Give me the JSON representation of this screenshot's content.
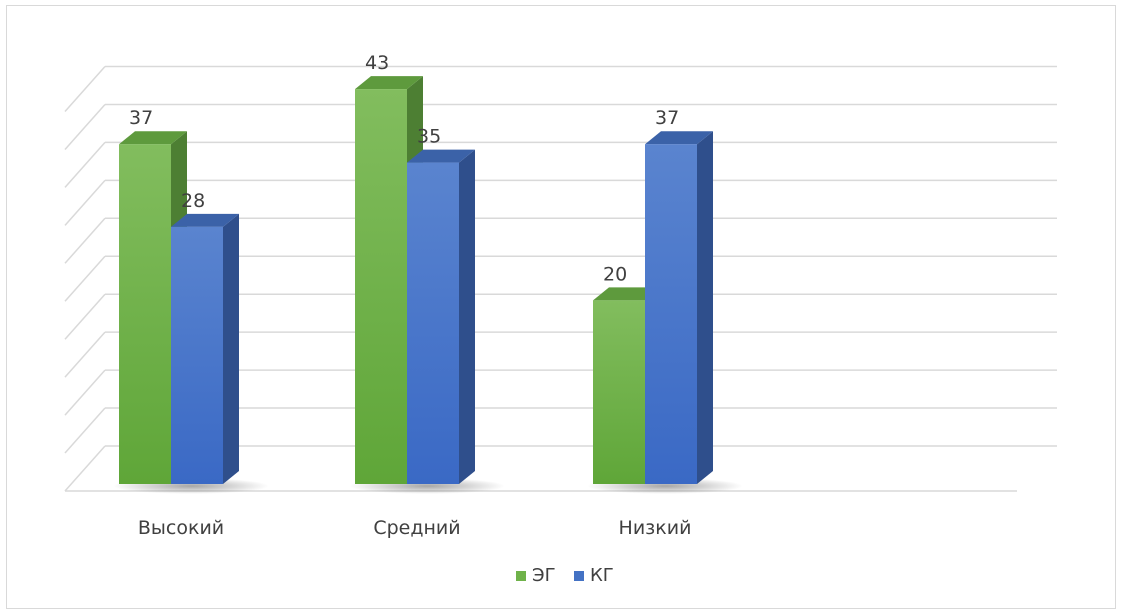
{
  "chart_data": {
    "type": "bar",
    "style": "3d-clustered-column",
    "categories": [
      "Высокий",
      "Средний",
      "Низкий"
    ],
    "series": [
      {
        "name": "ЭГ",
        "values": [
          37,
          43,
          20
        ],
        "color": "#6fb24a",
        "side_color": "#4d7f33",
        "top_color": "#5e9a3d"
      },
      {
        "name": "КГ",
        "values": [
          28,
          35,
          37
        ],
        "color": "#4472c4",
        "side_color": "#2f4f8c",
        "top_color": "#3b62a8"
      }
    ],
    "ylim": [
      0,
      50
    ],
    "grid": true,
    "legend_position": "bottom",
    "data_labels": true
  }
}
